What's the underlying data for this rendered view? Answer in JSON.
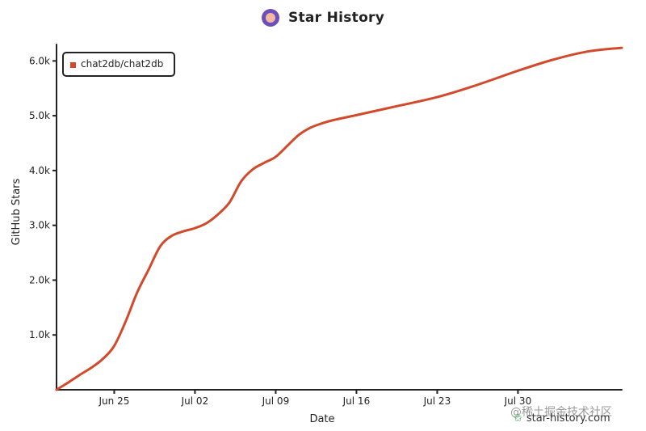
{
  "header": {
    "title": "Star History"
  },
  "legend": {
    "label": "chat2db/chat2db"
  },
  "watermark": {
    "cn_text": "@稀土掘金技术社区",
    "site": "star-history.com",
    "star_glyph": "✩"
  },
  "colors": {
    "series": "#d24a2c",
    "axis": "#222222"
  },
  "chart_data": {
    "type": "line",
    "title": "Star History",
    "xlabel": "Date",
    "ylabel": "GitHub Stars",
    "x_start": "2023-06-20",
    "x_end": "2023-08-08",
    "ylim": [
      0,
      6300
    ],
    "grid": false,
    "legend_position": "top-left",
    "x_ticks": [
      {
        "date": "2023-06-25",
        "label": "Jun 25"
      },
      {
        "date": "2023-07-02",
        "label": "Jul 02"
      },
      {
        "date": "2023-07-09",
        "label": "Jul 09"
      },
      {
        "date": "2023-07-16",
        "label": "Jul 16"
      },
      {
        "date": "2023-07-23",
        "label": "Jul 23"
      },
      {
        "date": "2023-07-30",
        "label": "Jul 30"
      }
    ],
    "y_ticks": [
      {
        "value": 1000,
        "label": "1.0k"
      },
      {
        "value": 2000,
        "label": "2.0k"
      },
      {
        "value": 3000,
        "label": "3.0k"
      },
      {
        "value": 4000,
        "label": "4.0k"
      },
      {
        "value": 5000,
        "label": "5.0k"
      },
      {
        "value": 6000,
        "label": "6.0k"
      }
    ],
    "series": [
      {
        "name": "chat2db/chat2db",
        "points": [
          [
            "2023-06-20",
            0
          ],
          [
            "2023-06-21",
            130
          ],
          [
            "2023-06-22",
            270
          ],
          [
            "2023-06-23",
            400
          ],
          [
            "2023-06-24",
            560
          ],
          [
            "2023-06-25",
            800
          ],
          [
            "2023-06-26",
            1250
          ],
          [
            "2023-06-27",
            1780
          ],
          [
            "2023-06-28",
            2200
          ],
          [
            "2023-06-29",
            2620
          ],
          [
            "2023-06-30",
            2810
          ],
          [
            "2023-07-01",
            2890
          ],
          [
            "2023-07-02",
            2950
          ],
          [
            "2023-07-03",
            3040
          ],
          [
            "2023-07-04",
            3200
          ],
          [
            "2023-07-05",
            3420
          ],
          [
            "2023-07-06",
            3800
          ],
          [
            "2023-07-07",
            4020
          ],
          [
            "2023-07-08",
            4140
          ],
          [
            "2023-07-09",
            4250
          ],
          [
            "2023-07-10",
            4450
          ],
          [
            "2023-07-11",
            4650
          ],
          [
            "2023-07-12",
            4780
          ],
          [
            "2023-07-13",
            4860
          ],
          [
            "2023-07-14",
            4920
          ],
          [
            "2023-07-16",
            5010
          ],
          [
            "2023-07-19",
            5150
          ],
          [
            "2023-07-23",
            5340
          ],
          [
            "2023-07-26",
            5530
          ],
          [
            "2023-07-30",
            5820
          ],
          [
            "2023-08-02",
            6020
          ],
          [
            "2023-08-05",
            6170
          ],
          [
            "2023-08-08",
            6240
          ]
        ]
      }
    ]
  }
}
